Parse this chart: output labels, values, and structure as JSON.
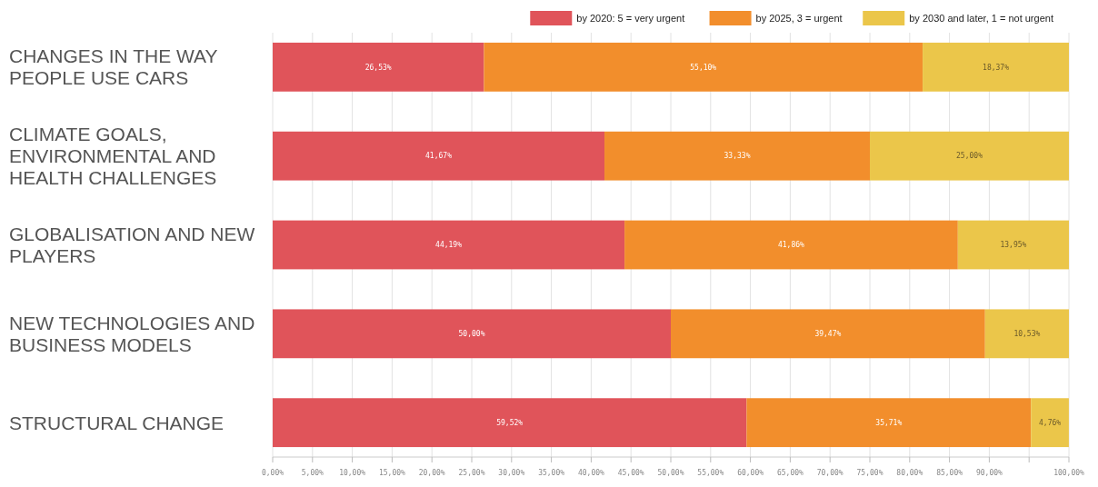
{
  "chart_data": {
    "type": "bar",
    "orientation": "horizontal",
    "stacked": true,
    "categories": [
      "CHANGES IN THE WAY PEOPLE USE CARS",
      "CLIMATE GOALS, ENVIRONMENTAL AND HEALTH CHALLENGES",
      "GLOBALISATION AND NEW PLAYERS",
      "NEW TECHNOLOGIES AND BUSINESS MODELS",
      "STRUCTURAL CHANGE"
    ],
    "series": [
      {
        "name": "by 2020: 5 = very urgent",
        "color": "#e0545a",
        "values": [
          26.53,
          41.67,
          44.19,
          50.0,
          59.52
        ],
        "value_labels": [
          "26,53%",
          "41,67%",
          "44,19%",
          "50,00%",
          "59,52%"
        ]
      },
      {
        "name": "by 2025, 3 = urgent",
        "color": "#f28e2c",
        "values": [
          55.1,
          33.33,
          41.86,
          39.47,
          35.71
        ],
        "value_labels": [
          "55,10%",
          "33,33%",
          "41,86%",
          "39,47%",
          "35,71%"
        ]
      },
      {
        "name": "by 2030 and later, 1 = not urgent",
        "color": "#ebc64a",
        "values": [
          18.37,
          25.0,
          13.95,
          10.53,
          4.76
        ],
        "value_labels": [
          "18,37%",
          "25,00%",
          "13,95%",
          "10,53%",
          "4,76%"
        ]
      }
    ],
    "xlim": [
      0,
      100
    ],
    "xticks": [
      {
        "value": 0,
        "label": "0,00%"
      },
      {
        "value": 5,
        "label": "5,00%"
      },
      {
        "value": 10,
        "label": "10,00%"
      },
      {
        "value": 15,
        "label": "15,00%"
      },
      {
        "value": 20,
        "label": "20,00%"
      },
      {
        "value": 25,
        "label": "25,00%"
      },
      {
        "value": 30,
        "label": "30,00%"
      },
      {
        "value": 35,
        "label": "35,00%"
      },
      {
        "value": 40,
        "label": "40,00%"
      },
      {
        "value": 45,
        "label": "45,00%"
      },
      {
        "value": 50,
        "label": "50,00%"
      },
      {
        "value": 55,
        "label": "55,00%"
      },
      {
        "value": 60,
        "label": "60,00%"
      },
      {
        "value": 65,
        "label": "65,00%"
      },
      {
        "value": 70,
        "label": "70,00%"
      },
      {
        "value": 75,
        "label": "75,00%"
      },
      {
        "value": 80,
        "label": "80,00%"
      },
      {
        "value": 85,
        "label": "85,00%"
      },
      {
        "value": 90,
        "label": "90,00%"
      },
      {
        "value": 95,
        "label": null
      },
      {
        "value": 100,
        "label": "100,00%"
      }
    ],
    "grid": "x",
    "legend": "top right"
  }
}
